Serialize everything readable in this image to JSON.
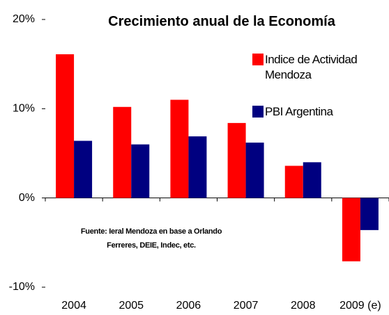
{
  "chart_data": {
    "type": "bar",
    "title": "Crecimiento anual de la Economía",
    "categories": [
      "2004",
      "2005",
      "2006",
      "2007",
      "2008",
      "2009 (e)"
    ],
    "series": [
      {
        "name": "Indice de Actividad Mendoza",
        "color": "#ff0000",
        "values": [
          16.1,
          10.2,
          11.0,
          8.4,
          3.6,
          -7.1
        ]
      },
      {
        "name": "PBI Argentina",
        "color": "#000080",
        "values": [
          6.4,
          6.0,
          6.9,
          6.2,
          4.0,
          -3.6
        ]
      }
    ],
    "ylim": [
      -10,
      20
    ],
    "yticks": [
      {
        "value": -10,
        "label": "-10%"
      },
      {
        "value": 0,
        "label": "0%"
      },
      {
        "value": 10,
        "label": "10%"
      },
      {
        "value": 20,
        "label": "20%"
      }
    ],
    "annotation": "Fuente: Ieral Mendoza en base a Orlando Ferreres, DEIE, Indec, etc.",
    "legend": "top-right"
  }
}
